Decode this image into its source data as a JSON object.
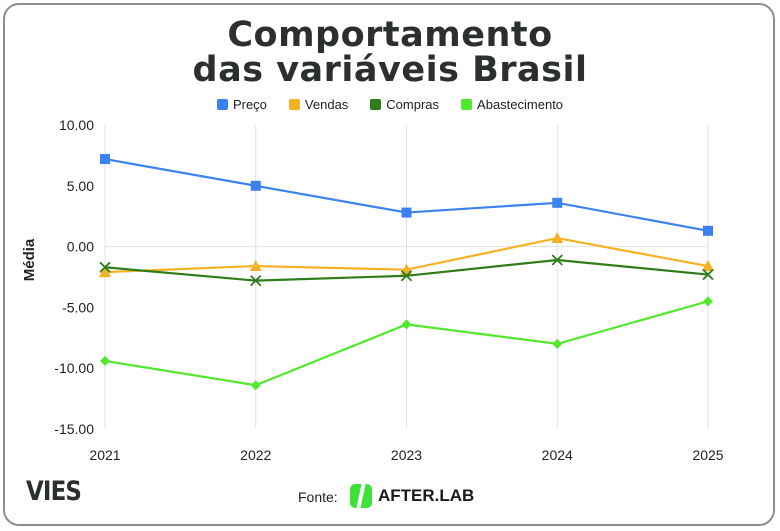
{
  "chart_data": {
    "type": "line",
    "title_lines": [
      "Comportamento",
      "das variáveis Brasil"
    ],
    "ylabel": "Média",
    "xlabel": "",
    "categories": [
      "2021",
      "2022",
      "2023",
      "2024",
      "2025"
    ],
    "ylim": [
      -15,
      10
    ],
    "yticks": [
      "10.00",
      "5.00",
      "0.00",
      "-5.00",
      "-10.00",
      "-15.00"
    ],
    "grid": true,
    "legend_position": "top",
    "series": [
      {
        "name": "Preço",
        "color": "#3b82f0",
        "marker": "square",
        "values": [
          7.2,
          5.0,
          2.8,
          3.6,
          1.3
        ]
      },
      {
        "name": "Vendas",
        "color": "#f5b223",
        "marker": "triangle",
        "values": [
          -2.1,
          -1.6,
          -1.9,
          0.7,
          -1.6
        ]
      },
      {
        "name": "Compras",
        "color": "#2e7d1a",
        "marker": "x",
        "values": [
          -1.7,
          -2.8,
          -2.4,
          -1.1,
          -2.3
        ]
      },
      {
        "name": "Abastecimento",
        "color": "#52e82e",
        "marker": "diamond",
        "values": [
          -9.4,
          -11.4,
          -6.4,
          -8.0,
          -4.5
        ]
      }
    ]
  },
  "footer": {
    "brand": "VIES",
    "source_label": "Fonte:",
    "source_name": "AFTER.LAB"
  }
}
